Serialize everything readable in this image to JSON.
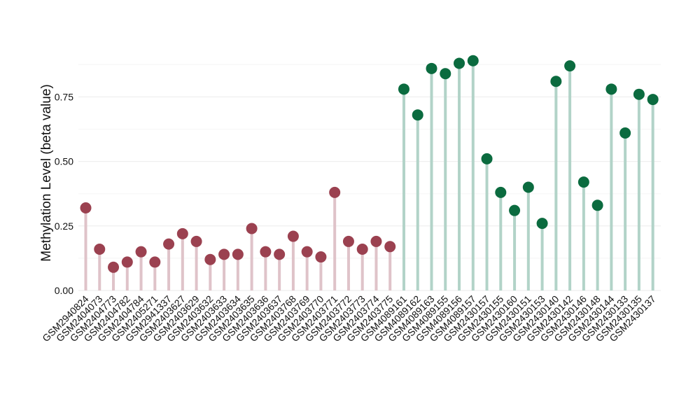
{
  "chart_data": {
    "type": "lollipop",
    "title": "",
    "xlabel": "",
    "ylabel": "Methylation Level (beta value)",
    "ylim": [
      0,
      0.93
    ],
    "yticks": [
      0.0,
      0.25,
      0.5,
      0.75
    ],
    "ytick_labels": [
      "0.00",
      "0.25",
      "0.50",
      "0.75"
    ],
    "grid": true,
    "legend": "none",
    "colors": {
      "group_1_point": "#9b4150",
      "group_1_stem": "#dfc3c9",
      "group_2_point": "#0b6b3f",
      "group_2_stem": "#b2d3c8",
      "grid": "#ebebeb",
      "text": "#111111"
    },
    "categories": [
      "GSM2940824",
      "GSM2404073",
      "GSM2404773",
      "GSM2404782",
      "GSM2404784",
      "GSM2405271",
      "GSM2941337",
      "GSM2403627",
      "GSM2403629",
      "GSM2403632",
      "GSM2403633",
      "GSM2403634",
      "GSM2403635",
      "GSM2403636",
      "GSM2403637",
      "GSM2403768",
      "GSM2403769",
      "GSM2403770",
      "GSM2403771",
      "GSM2403772",
      "GSM2403773",
      "GSM2403774",
      "GSM2403775",
      "GSM4089161",
      "GSM4089162",
      "GSM4089163",
      "GSM4089155",
      "GSM4089156",
      "GSM4089157",
      "GSM2430157",
      "GSM2430155",
      "GSM2430160",
      "GSM2430151",
      "GSM2430153",
      "GSM2430140",
      "GSM2430142",
      "GSM2430146",
      "GSM2430148",
      "GSM2430144",
      "GSM2430133",
      "GSM2430135",
      "GSM2430137"
    ],
    "values": [
      0.32,
      0.16,
      0.09,
      0.11,
      0.15,
      0.11,
      0.18,
      0.22,
      0.19,
      0.12,
      0.14,
      0.14,
      0.24,
      0.15,
      0.14,
      0.21,
      0.15,
      0.13,
      0.38,
      0.19,
      0.16,
      0.19,
      0.17,
      0.78,
      0.68,
      0.86,
      0.84,
      0.88,
      0.89,
      0.51,
      0.38,
      0.31,
      0.4,
      0.26,
      0.81,
      0.87,
      0.42,
      0.33,
      0.78,
      0.61,
      0.76,
      0.74
    ],
    "groups": [
      1,
      1,
      1,
      1,
      1,
      1,
      1,
      1,
      1,
      1,
      1,
      1,
      1,
      1,
      1,
      1,
      1,
      1,
      1,
      1,
      1,
      1,
      1,
      2,
      2,
      2,
      2,
      2,
      2,
      2,
      2,
      2,
      2,
      2,
      2,
      2,
      2,
      2,
      2,
      2,
      2,
      2
    ]
  }
}
